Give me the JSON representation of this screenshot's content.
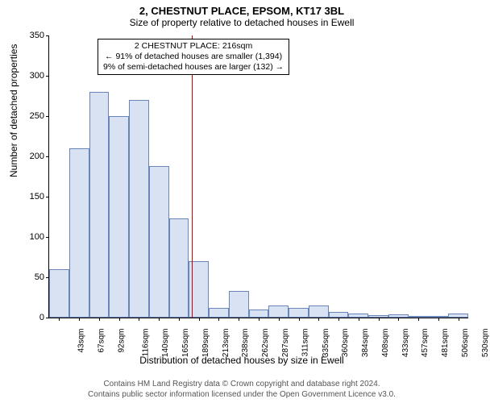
{
  "title": {
    "main": "2, CHESTNUT PLACE, EPSOM, KT17 3BL",
    "sub": "Size of property relative to detached houses in Ewell"
  },
  "chart": {
    "type": "histogram",
    "ylabel": "Number of detached properties",
    "xlabel": "Distribution of detached houses by size in Ewell",
    "ylim": [
      0,
      350
    ],
    "yticks": [
      0,
      50,
      100,
      150,
      200,
      250,
      300,
      350
    ],
    "categories": [
      "43sqm",
      "67sqm",
      "92sqm",
      "116sqm",
      "140sqm",
      "165sqm",
      "189sqm",
      "213sqm",
      "238sqm",
      "262sqm",
      "287sqm",
      "311sqm",
      "335sqm",
      "360sqm",
      "384sqm",
      "408sqm",
      "433sqm",
      "457sqm",
      "481sqm",
      "506sqm",
      "530sqm"
    ],
    "values": [
      60,
      210,
      280,
      250,
      270,
      188,
      123,
      70,
      12,
      33,
      10,
      15,
      12,
      15,
      7,
      5,
      3,
      4,
      2,
      2,
      5
    ],
    "bar_fill": "#d8e2f2",
    "bar_stroke": "#6a85b8",
    "background_color": "#ffffff",
    "axis_color": "#000000",
    "label_fontsize": 12,
    "tick_fontsize": 11,
    "ref_line": {
      "category_index": 7,
      "color": "#cc0000"
    },
    "annotation": {
      "lines": [
        "2 CHESTNUT PLACE: 216sqm",
        "← 91% of detached houses are smaller (1,394)",
        "9% of semi-detached houses are larger (132) →"
      ],
      "border_color": "#000000",
      "fontsize": 10.5
    }
  },
  "footer": {
    "line1": "Contains HM Land Registry data © Crown copyright and database right 2024.",
    "line2": "Contains public sector information licensed under the Open Government Licence v3.0."
  }
}
